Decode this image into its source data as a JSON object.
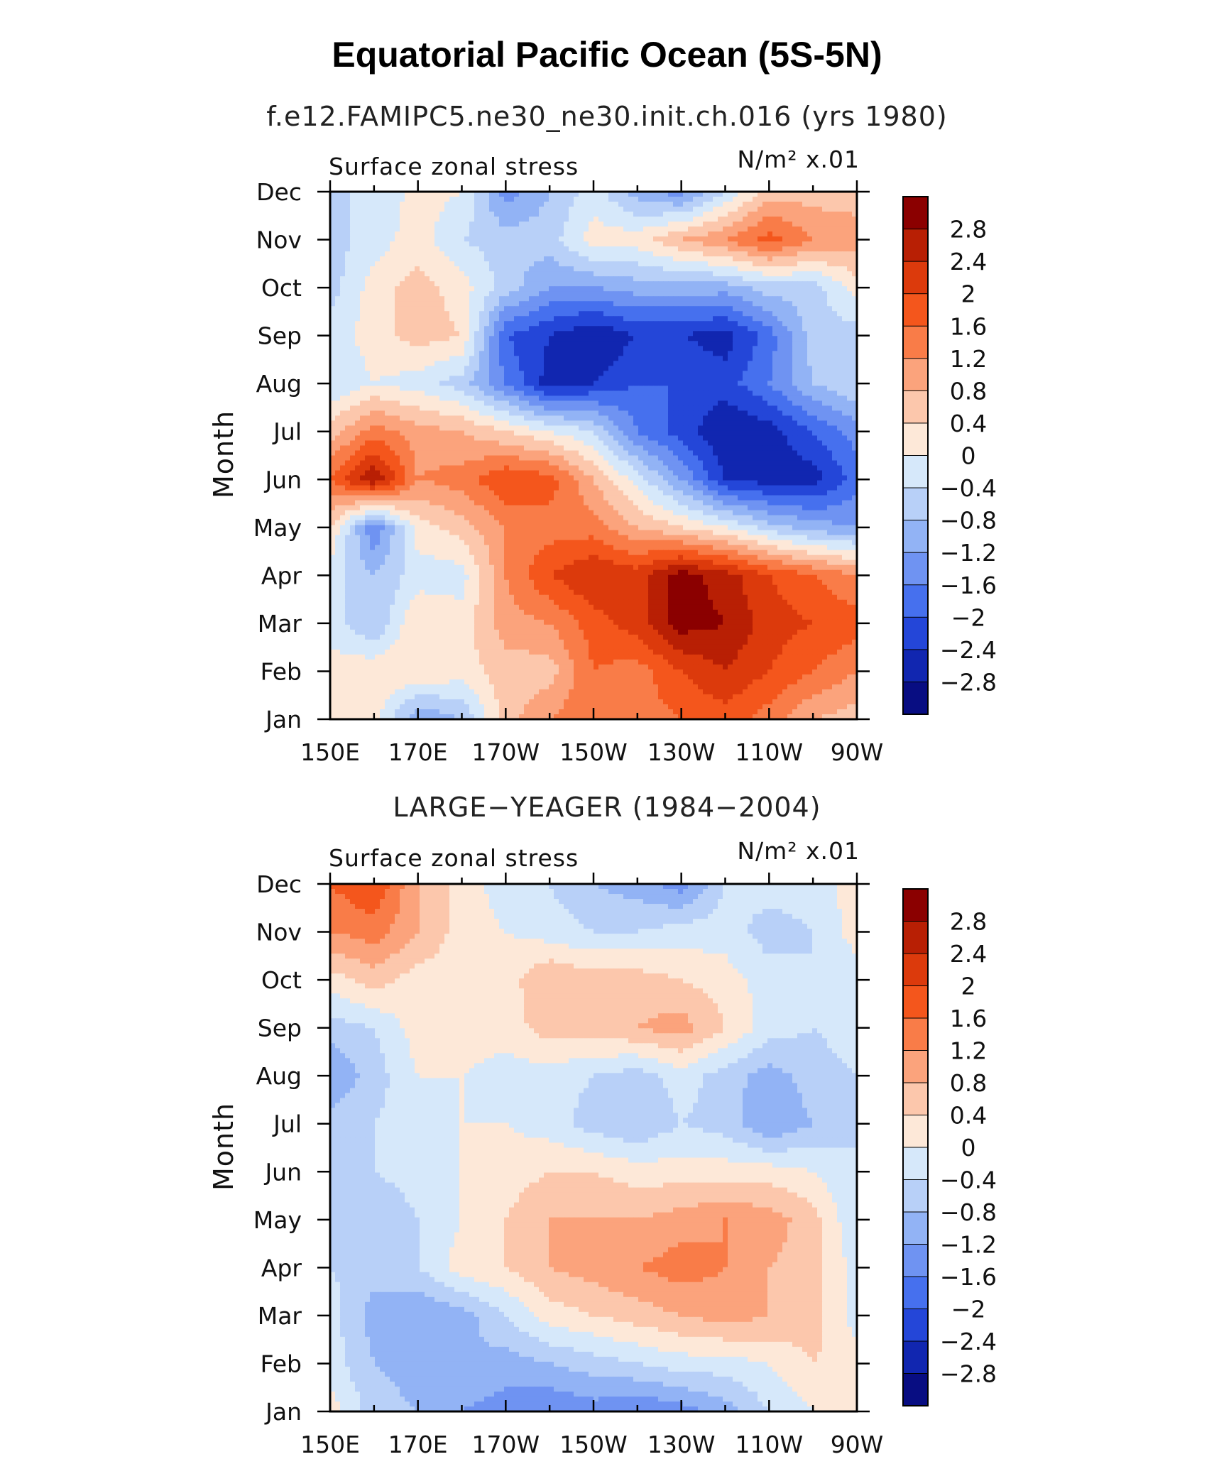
{
  "figure": {
    "title": "Equatorial Pacific Ocean (5S-5N)"
  },
  "panels": [
    {
      "subtitle": "f.e12.FAMIPC5.ne30_ne30.init.ch.016 (yrs 1980)",
      "left_string": "Surface zonal stress",
      "right_string": "N/m² x.01",
      "ylabel": "Month"
    },
    {
      "subtitle": "LARGE−YEAGER (1984−2004)",
      "left_string": "Surface zonal stress",
      "right_string": "N/m² x.01",
      "ylabel": "Month"
    }
  ],
  "colorbar": {
    "labels": [
      "2.8",
      "2.4",
      "2",
      "1.6",
      "1.2",
      "0.8",
      "0.4",
      "0",
      "−0.4",
      "−0.8",
      "−1.2",
      "−1.6",
      "−2",
      "−2.4",
      "−2.8"
    ],
    "colors": [
      "#8b0000",
      "#b81f04",
      "#dc3a0c",
      "#f4561c",
      "#f97c48",
      "#fba37c",
      "#fcc7ac",
      "#fde8d8",
      "#d6e8fa",
      "#b8d0f8",
      "#92b3f5",
      "#6f93f2",
      "#4670ee",
      "#2446d8",
      "#1126b0",
      "#080d82"
    ]
  },
  "chart_data": [
    {
      "type": "heatmap",
      "title": "Equatorial Pacific Ocean (5S-5N)",
      "subtitle": "f.e12.FAMIPC5.ne30_ne30.init.ch.016 (yrs 1980)",
      "xlabel": "",
      "ylabel": "Month",
      "x_ticks": [
        "150E",
        "170E",
        "170W",
        "150W",
        "130W",
        "110W",
        "90W"
      ],
      "y_ticks": [
        "Jan",
        "Feb",
        "Mar",
        "Apr",
        "May",
        "Jun",
        "Jul",
        "Aug",
        "Sep",
        "Oct",
        "Nov",
        "Dec"
      ],
      "x_lon": [
        150,
        160,
        170,
        180,
        190,
        200,
        210,
        220,
        230,
        240,
        250,
        260,
        270
      ],
      "y_month": [
        "Jan",
        "Feb",
        "Mar",
        "Apr",
        "May",
        "Jun",
        "Jul",
        "Aug",
        "Sep",
        "Oct",
        "Nov",
        "Dec"
      ],
      "z": [
        [
          0.2,
          0.2,
          -1.2,
          -0.8,
          0.6,
          1.2,
          1.6,
          1.4,
          1.6,
          1.8,
          1.4,
          0.8,
          0.6
        ],
        [
          0.2,
          0.3,
          0.4,
          0.2,
          0.6,
          0.6,
          1.6,
          1.4,
          2.0,
          2.4,
          2.0,
          1.6,
          1.2
        ],
        [
          -0.2,
          -0.8,
          0.4,
          0.2,
          1.0,
          1.2,
          1.8,
          2.2,
          3.0,
          2.8,
          2.2,
          2.0,
          1.8
        ],
        [
          -0.2,
          -0.8,
          -0.2,
          -0.2,
          1.2,
          2.0,
          2.4,
          2.2,
          3.0,
          2.6,
          2.0,
          1.6,
          1.2
        ],
        [
          0.4,
          -1.6,
          0.2,
          0.6,
          1.2,
          1.4,
          1.4,
          0.8,
          0.4,
          0.0,
          -0.6,
          -1.0,
          -1.2
        ],
        [
          1.6,
          2.8,
          1.2,
          1.4,
          2.0,
          1.8,
          0.8,
          -0.2,
          -1.2,
          -2.4,
          -2.6,
          -2.6,
          -1.8
        ],
        [
          0.6,
          1.4,
          1.0,
          0.8,
          0.4,
          0.0,
          -0.4,
          -1.6,
          -2.2,
          -2.8,
          -2.6,
          -2.0,
          -1.4
        ],
        [
          -0.4,
          0.0,
          -0.2,
          -0.6,
          -1.6,
          -2.6,
          -2.4,
          -2.0,
          -2.0,
          -2.2,
          -1.6,
          -0.8,
          -0.4
        ],
        [
          -0.2,
          0.2,
          0.6,
          0.4,
          -2.0,
          -2.4,
          -2.8,
          -2.4,
          -2.4,
          -2.6,
          -1.8,
          -0.6,
          -0.6
        ],
        [
          -0.6,
          0.2,
          0.6,
          0.2,
          -0.6,
          -1.2,
          -1.2,
          -1.0,
          -1.0,
          -1.0,
          -0.6,
          -0.6,
          0.2
        ],
        [
          -0.6,
          -0.2,
          0.2,
          -0.4,
          -0.6,
          -0.6,
          0.2,
          0.2,
          0.8,
          1.2,
          1.8,
          1.2,
          1.0
        ],
        [
          -0.4,
          -0.4,
          0.2,
          0.0,
          -1.4,
          -0.8,
          -0.2,
          -1.0,
          -1.4,
          -0.4,
          0.6,
          0.6,
          0.6
        ]
      ],
      "contour_levels": [
        -2.8,
        -2.4,
        -2.0,
        -1.6,
        -1.2,
        -0.8,
        -0.4,
        0.0,
        0.4,
        0.8,
        1.2,
        1.6,
        2.0,
        2.4,
        2.8
      ]
    },
    {
      "type": "heatmap",
      "title": "Equatorial Pacific Ocean (5S-5N)",
      "subtitle": "LARGE−YEAGER (1984−2004)",
      "xlabel": "",
      "ylabel": "Month",
      "x_ticks": [
        "150E",
        "170E",
        "170W",
        "150W",
        "130W",
        "110W",
        "90W"
      ],
      "y_ticks": [
        "Jan",
        "Feb",
        "Mar",
        "Apr",
        "May",
        "Jun",
        "Jul",
        "Aug",
        "Sep",
        "Oct",
        "Nov",
        "Dec"
      ],
      "x_lon": [
        150,
        160,
        170,
        180,
        190,
        200,
        210,
        220,
        230,
        240,
        250,
        260,
        270
      ],
      "y_month": [
        "Jan",
        "Feb",
        "Mar",
        "Apr",
        "May",
        "Jun",
        "Jul",
        "Aug",
        "Sep",
        "Oct",
        "Nov",
        "Dec"
      ],
      "z": [
        [
          0.2,
          -0.6,
          -0.8,
          -1.2,
          -1.4,
          -1.6,
          -1.4,
          -1.6,
          -1.4,
          -1.0,
          -0.4,
          0.0,
          0.2
        ],
        [
          -0.2,
          -0.8,
          -1.0,
          -0.8,
          -1.0,
          -0.8,
          -0.6,
          -0.4,
          -0.2,
          -0.2,
          0.0,
          0.4,
          0.2
        ],
        [
          -0.2,
          -1.0,
          -1.2,
          -1.0,
          -0.4,
          0.2,
          0.4,
          0.6,
          0.8,
          1.0,
          0.8,
          0.6,
          -0.2
        ],
        [
          -0.4,
          -0.6,
          -0.4,
          0.2,
          0.4,
          0.8,
          1.0,
          1.2,
          1.4,
          1.2,
          0.8,
          0.6,
          -0.2
        ],
        [
          -0.4,
          -0.8,
          -0.4,
          0.0,
          0.4,
          0.8,
          0.8,
          0.8,
          1.0,
          1.2,
          1.0,
          0.6,
          -0.4
        ],
        [
          -0.4,
          -0.4,
          -0.2,
          0.0,
          0.2,
          0.4,
          0.4,
          0.2,
          0.2,
          0.2,
          0.2,
          0.0,
          -0.4
        ],
        [
          -0.6,
          -0.4,
          -0.2,
          0.0,
          0.0,
          -0.2,
          -0.6,
          -0.8,
          -0.4,
          -0.6,
          -1.2,
          -0.8,
          -0.4
        ],
        [
          -1.2,
          -0.6,
          0.0,
          0.0,
          -0.2,
          -0.2,
          -0.4,
          -0.6,
          -0.2,
          -0.6,
          -1.0,
          -0.6,
          -0.4
        ],
        [
          -0.6,
          -0.4,
          0.2,
          0.2,
          0.2,
          0.6,
          0.6,
          0.8,
          1.0,
          0.4,
          -0.2,
          -0.4,
          -0.2
        ],
        [
          0.2,
          0.6,
          0.2,
          0.2,
          0.2,
          0.8,
          0.6,
          0.6,
          0.4,
          0.2,
          -0.2,
          -0.4,
          -0.2
        ],
        [
          1.2,
          1.4,
          0.8,
          0.2,
          0.0,
          -0.2,
          -0.4,
          -0.4,
          -0.2,
          -0.2,
          -0.6,
          -0.4,
          0.2
        ],
        [
          1.6,
          2.0,
          0.8,
          0.2,
          -0.2,
          -0.4,
          -0.8,
          -1.0,
          -1.4,
          -0.4,
          -0.2,
          -0.2,
          0.2
        ]
      ],
      "contour_levels": [
        -2.8,
        -2.4,
        -2.0,
        -1.6,
        -1.2,
        -0.8,
        -0.4,
        0.0,
        0.4,
        0.8,
        1.2,
        1.6,
        2.0,
        2.4,
        2.8
      ]
    }
  ]
}
